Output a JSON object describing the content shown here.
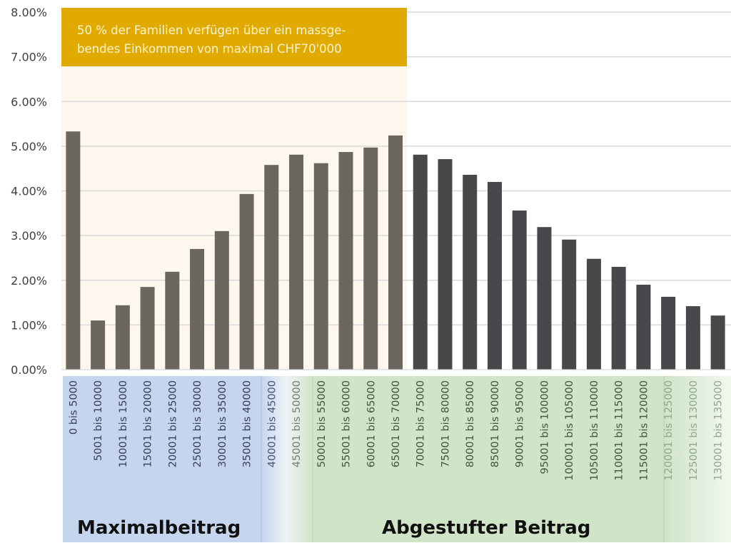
{
  "chart_data": {
    "type": "bar",
    "title": "",
    "xlabel": "",
    "ylabel": "",
    "ylim": [
      0,
      8
    ],
    "y_ticks": [
      "0.00%",
      "1.00%",
      "2.00%",
      "3.00%",
      "4.00%",
      "5.00%",
      "6.00%",
      "7.00%",
      "8.00%"
    ],
    "grid": true,
    "categories": [
      "0 bis 5000",
      "5001 bis 10000",
      "10001 bis 15000",
      "15001 bis 20000",
      "20001 bis 25000",
      "25001 bis 30000",
      "30001 bis 35000",
      "35001 bis 40000",
      "40001 bis 45000",
      "45001 bis 50000",
      "50001 bis 55000",
      "55001 bis 60000",
      "60001 bis 65000",
      "65001 bis 70000",
      "70001 bis 75000",
      "75001 bis 80000",
      "80001 bis 85000",
      "85001 bis 90000",
      "90001 bis 95000",
      "95001 bis 100000",
      "100001 bis 105000",
      "105001 bis 110000",
      "110001 bis 115000",
      "115001 bis 120000",
      "120001 bis 125000",
      "125001 bis 130000",
      "130001 bis 135000"
    ],
    "values": [
      5.33,
      1.1,
      1.44,
      1.85,
      2.19,
      2.7,
      3.1,
      3.93,
      4.58,
      4.81,
      4.62,
      4.87,
      4.97,
      5.24,
      4.81,
      4.71,
      4.36,
      4.2,
      3.56,
      3.19,
      2.91,
      2.48,
      2.3,
      1.9,
      1.63,
      1.42,
      1.21
    ],
    "highlight_count": 14,
    "annotation": {
      "line1": "50 % der Familien verfügen über ein massge-",
      "line2": "bendes Einkommen von maximal CHF70'000"
    },
    "bands": [
      {
        "label": "Maximalbeitrag"
      },
      {
        "label": "Abgestufter Beitrag"
      }
    ],
    "colors": {
      "bar_highlight": "#6b6660",
      "bar_other": "#48484c",
      "annotation_box": "#e0aa00",
      "highlight_area": "#fdf7ee",
      "band_blue": "#c6d5ee",
      "band_green": "#d0e4c8",
      "grid": "#d9d9d9"
    }
  }
}
